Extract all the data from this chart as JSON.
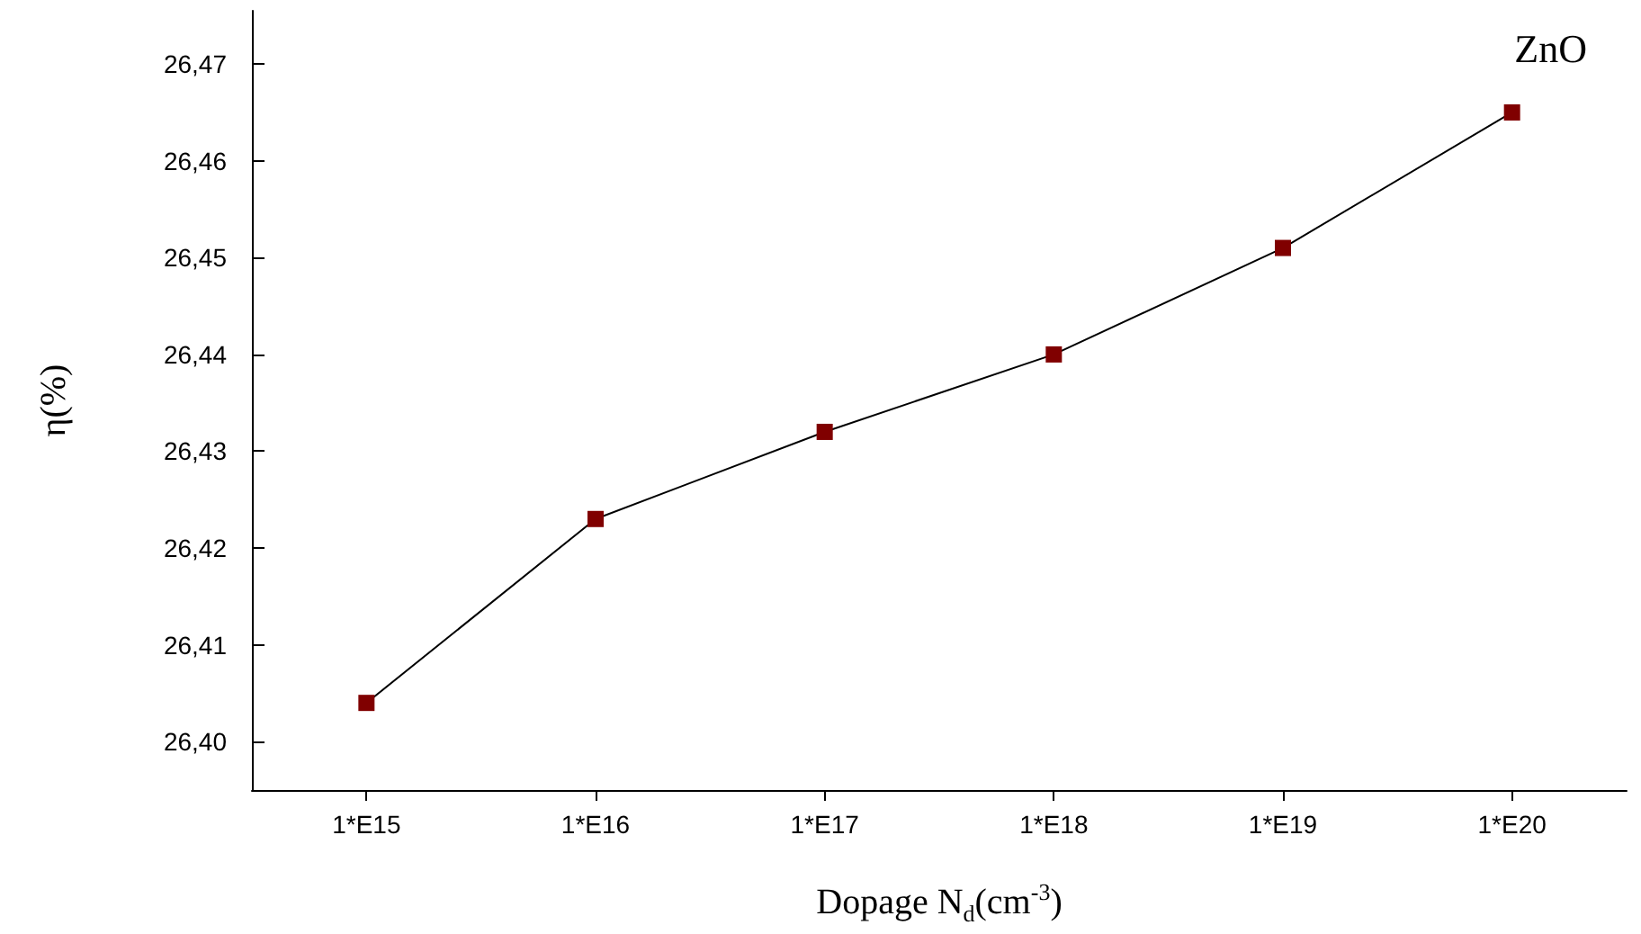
{
  "chart_data": {
    "type": "line",
    "xlabel": "Dopage N$_{d}$(cm$^{-3}$)",
    "ylabel": "η(%)",
    "categories": [
      "1*E15",
      "1*E16",
      "1*E17",
      "1*E18",
      "1*E19",
      "1*E20"
    ],
    "series": [
      {
        "color": "#800000",
        "values": [
          26.404,
          26.423,
          26.432,
          26.44,
          26.451,
          26.465
        ]
      }
    ],
    "ylim": [
      26.395,
      26.4755
    ],
    "yticks": [
      {
        "value": 26.4,
        "label": "26,40"
      },
      {
        "value": 26.41,
        "label": "26,41"
      },
      {
        "value": 26.42,
        "label": "26,42"
      },
      {
        "value": 26.43,
        "label": "26,43"
      },
      {
        "value": 26.44,
        "label": "26,44"
      },
      {
        "value": 26.45,
        "label": "26,45"
      },
      {
        "value": 26.46,
        "label": "26,46"
      },
      {
        "value": 26.47,
        "label": "26,47"
      }
    ],
    "annotations": [
      "ZnO"
    ],
    "marker": "square",
    "grid": false
  }
}
